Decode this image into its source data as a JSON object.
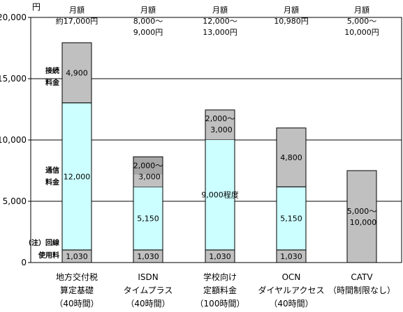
{
  "chart_data": {
    "type": "bar",
    "stacked": true,
    "unit_label": "円",
    "ylim": [
      0,
      20000
    ],
    "yticks": [
      0,
      5000,
      10000,
      15000,
      20000
    ],
    "ytick_labels": [
      "0",
      "5,000",
      "10,000",
      "15,000",
      "20,000"
    ],
    "grid": true,
    "categories": [
      {
        "lines": [
          "地方交付税",
          "算定基礎",
          "（40時間）"
        ]
      },
      {
        "lines": [
          "ISDN",
          "タイムプラス",
          "（40時間）"
        ]
      },
      {
        "lines": [
          "学校向け",
          "定額料金",
          "（100時間）"
        ]
      },
      {
        "lines": [
          "OCN",
          "ダイヤルアクセス",
          "（40時間）"
        ]
      },
      {
        "lines": [
          "CATV",
          "（時間制限なし）"
        ]
      }
    ],
    "series": [
      {
        "name": "回線使用料",
        "color": "#c0c0c0",
        "values": [
          1030,
          1030,
          1030,
          1030,
          0
        ],
        "labels": [
          "1,030",
          "1,030",
          "1,030",
          "1,030",
          ""
        ]
      },
      {
        "name": "通信料金",
        "color": "#ccffff",
        "values": [
          12000,
          5150,
          9000,
          5150,
          0
        ],
        "labels": [
          "12,000",
          "5,150",
          "9,000程度",
          "5,150",
          ""
        ]
      },
      {
        "name": "接続料金",
        "color": "#c0c0c0",
        "values": [
          4900,
          0,
          0,
          4800,
          0
        ],
        "labels": [
          "4,900",
          "",
          "",
          "4,800",
          ""
        ]
      }
    ],
    "ranges": [
      {
        "bar": 1,
        "from": 6180,
        "to": 8630,
        "color": "#a6a6a6",
        "inner_from": 6180,
        "inner_to": 7180,
        "inner_color": "#c0c0c0",
        "label_lines": [
          "2,000～",
          "3,000"
        ]
      },
      {
        "bar": 2,
        "from": 10030,
        "to": 12450,
        "color": "#c0c0c0",
        "inner_from": 10030,
        "inner_to": 11030,
        "inner_color": "#c0c0c0",
        "label_lines": [
          "2,000～",
          "3,000"
        ]
      },
      {
        "bar": 4,
        "from": 0,
        "to": 7500,
        "color": "#c0c0c0",
        "inner_from": 0,
        "inner_to": 0,
        "inner_color": "#c0c0c0",
        "label_lines": [
          "5,000～",
          "10,000"
        ]
      }
    ],
    "top_labels": [
      [
        "月額",
        "約17,000円"
      ],
      [
        "月額",
        "8,000～",
        "9,000円"
      ],
      [
        "月額",
        "12,000～",
        "13,000円"
      ],
      [
        "月額",
        "10,980円"
      ],
      [
        "月額",
        "5,000～",
        "10,000円"
      ]
    ],
    "side_labels": [
      {
        "lines": [
          "接続",
          "料金"
        ],
        "at": 15000
      },
      {
        "lines": [
          "通信",
          "料金"
        ],
        "at": 7000
      },
      {
        "lines": [
          "（注）回線",
          "使用料"
        ],
        "at": 1030
      }
    ]
  }
}
